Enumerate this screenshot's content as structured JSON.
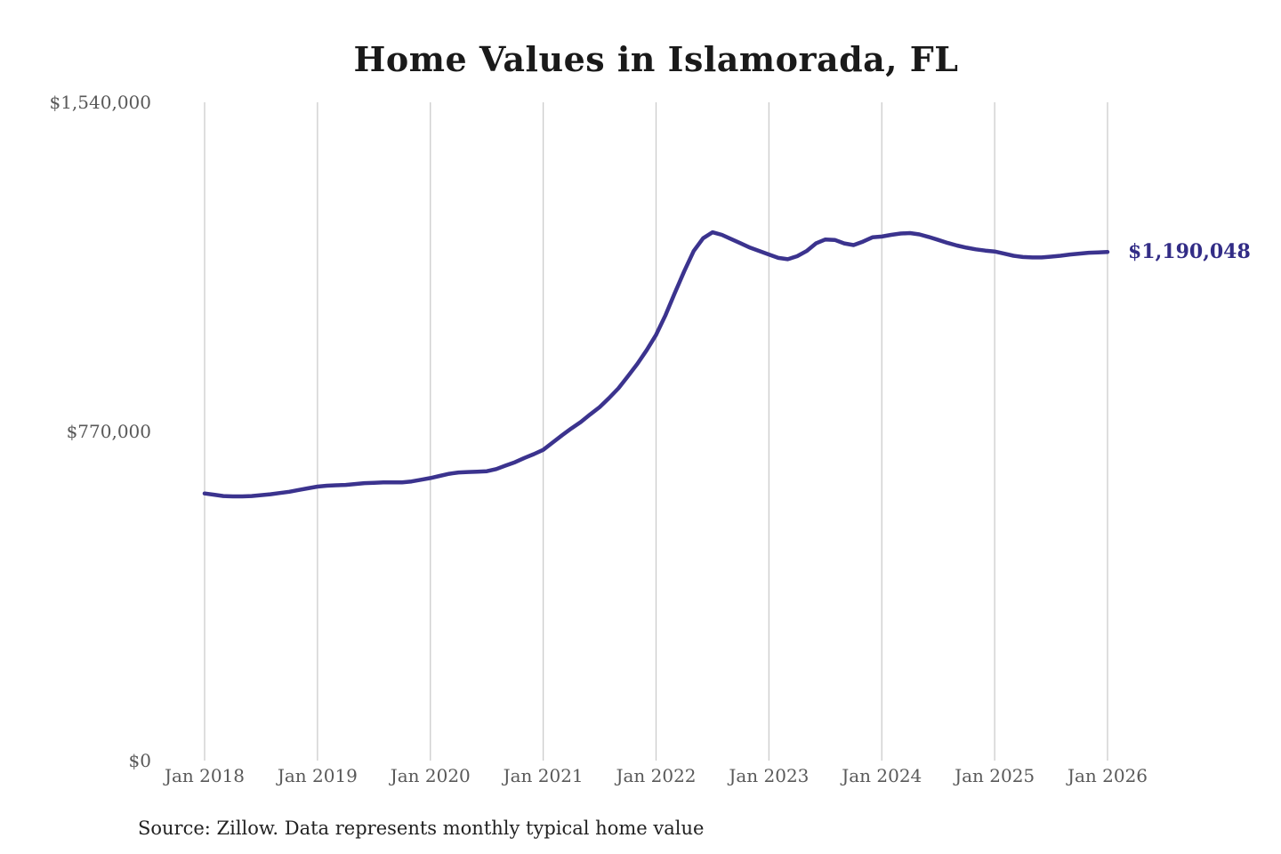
{
  "page": {
    "source_note": "Source: Zillow. Data represents monthly typical home value"
  },
  "chart_data": {
    "type": "line",
    "title": "Home Values in Islamorada, FL",
    "series_name": "Monthly typical home value",
    "x": [
      "2018-01",
      "2018-02",
      "2018-03",
      "2018-04",
      "2018-05",
      "2018-06",
      "2018-07",
      "2018-08",
      "2018-09",
      "2018-10",
      "2018-11",
      "2018-12",
      "2019-01",
      "2019-02",
      "2019-03",
      "2019-04",
      "2019-05",
      "2019-06",
      "2019-07",
      "2019-08",
      "2019-09",
      "2019-10",
      "2019-11",
      "2019-12",
      "2020-01",
      "2020-02",
      "2020-03",
      "2020-04",
      "2020-05",
      "2020-06",
      "2020-07",
      "2020-08",
      "2020-09",
      "2020-10",
      "2020-11",
      "2020-12",
      "2021-01",
      "2021-02",
      "2021-03",
      "2021-04",
      "2021-05",
      "2021-06",
      "2021-07",
      "2021-08",
      "2021-09",
      "2021-10",
      "2021-11",
      "2021-12",
      "2022-01",
      "2022-02",
      "2022-03",
      "2022-04",
      "2022-05",
      "2022-06",
      "2022-07",
      "2022-08",
      "2022-09",
      "2022-10",
      "2022-11",
      "2022-12",
      "2023-01",
      "2023-02",
      "2023-03",
      "2023-04",
      "2023-05",
      "2023-06",
      "2023-07",
      "2023-08",
      "2023-09",
      "2023-10",
      "2023-11",
      "2023-12",
      "2024-01",
      "2024-02",
      "2024-03",
      "2024-04",
      "2024-05",
      "2024-06",
      "2024-07",
      "2024-08",
      "2024-09",
      "2024-10",
      "2024-11",
      "2024-12",
      "2025-01",
      "2025-02",
      "2025-03",
      "2025-04",
      "2025-05",
      "2025-06",
      "2025-07",
      "2025-08",
      "2025-09",
      "2025-10",
      "2025-11",
      "2025-12",
      "2026-01"
    ],
    "values": [
      625000,
      622000,
      619000,
      618000,
      618000,
      619000,
      621000,
      623000,
      626000,
      629000,
      633000,
      637000,
      641000,
      643000,
      644000,
      645000,
      647000,
      649000,
      650000,
      651000,
      651000,
      651000,
      653000,
      657000,
      661000,
      666000,
      671000,
      674000,
      675000,
      676000,
      677000,
      682000,
      690000,
      698000,
      708000,
      717000,
      727000,
      744000,
      761000,
      777000,
      792000,
      810000,
      827000,
      848000,
      871000,
      899000,
      928000,
      960000,
      996000,
      1042000,
      1094000,
      1145000,
      1192000,
      1222000,
      1236000,
      1230000,
      1220000,
      1210000,
      1200000,
      1192000,
      1184000,
      1176000,
      1173000,
      1180000,
      1192000,
      1210000,
      1219000,
      1218000,
      1210000,
      1206000,
      1214000,
      1224000,
      1226000,
      1230000,
      1233000,
      1234000,
      1231000,
      1225000,
      1218000,
      1211000,
      1205000,
      1200000,
      1196000,
      1193000,
      1191000,
      1186000,
      1181000,
      1178000,
      1177000,
      1177000,
      1179000,
      1181000,
      1184000,
      1186000,
      1188000,
      1189000,
      1190048
    ],
    "x_ticks": [
      "Jan 2018",
      "Jan 2019",
      "Jan 2020",
      "Jan 2021",
      "Jan 2022",
      "Jan 2023",
      "Jan 2024",
      "Jan 2025",
      "Jan 2026"
    ],
    "y_ticks": [
      {
        "label": "$0",
        "value": 0
      },
      {
        "label": "$770,000",
        "value": 770000
      },
      {
        "label": "$1,540,000",
        "value": 1540000
      }
    ],
    "ylim": [
      0,
      1540000
    ],
    "xlabel": "",
    "ylabel": "",
    "grid": "vertical-only",
    "legend": "none",
    "end_label": "$1,190,048",
    "end_value": 1190048,
    "colors": {
      "line": "#3b338e",
      "end_label": "#322c86",
      "grid": "#cccccc",
      "tick_label": "#595959",
      "title": "#1a1a1a",
      "source": "#222222",
      "background": "#ffffff"
    }
  }
}
